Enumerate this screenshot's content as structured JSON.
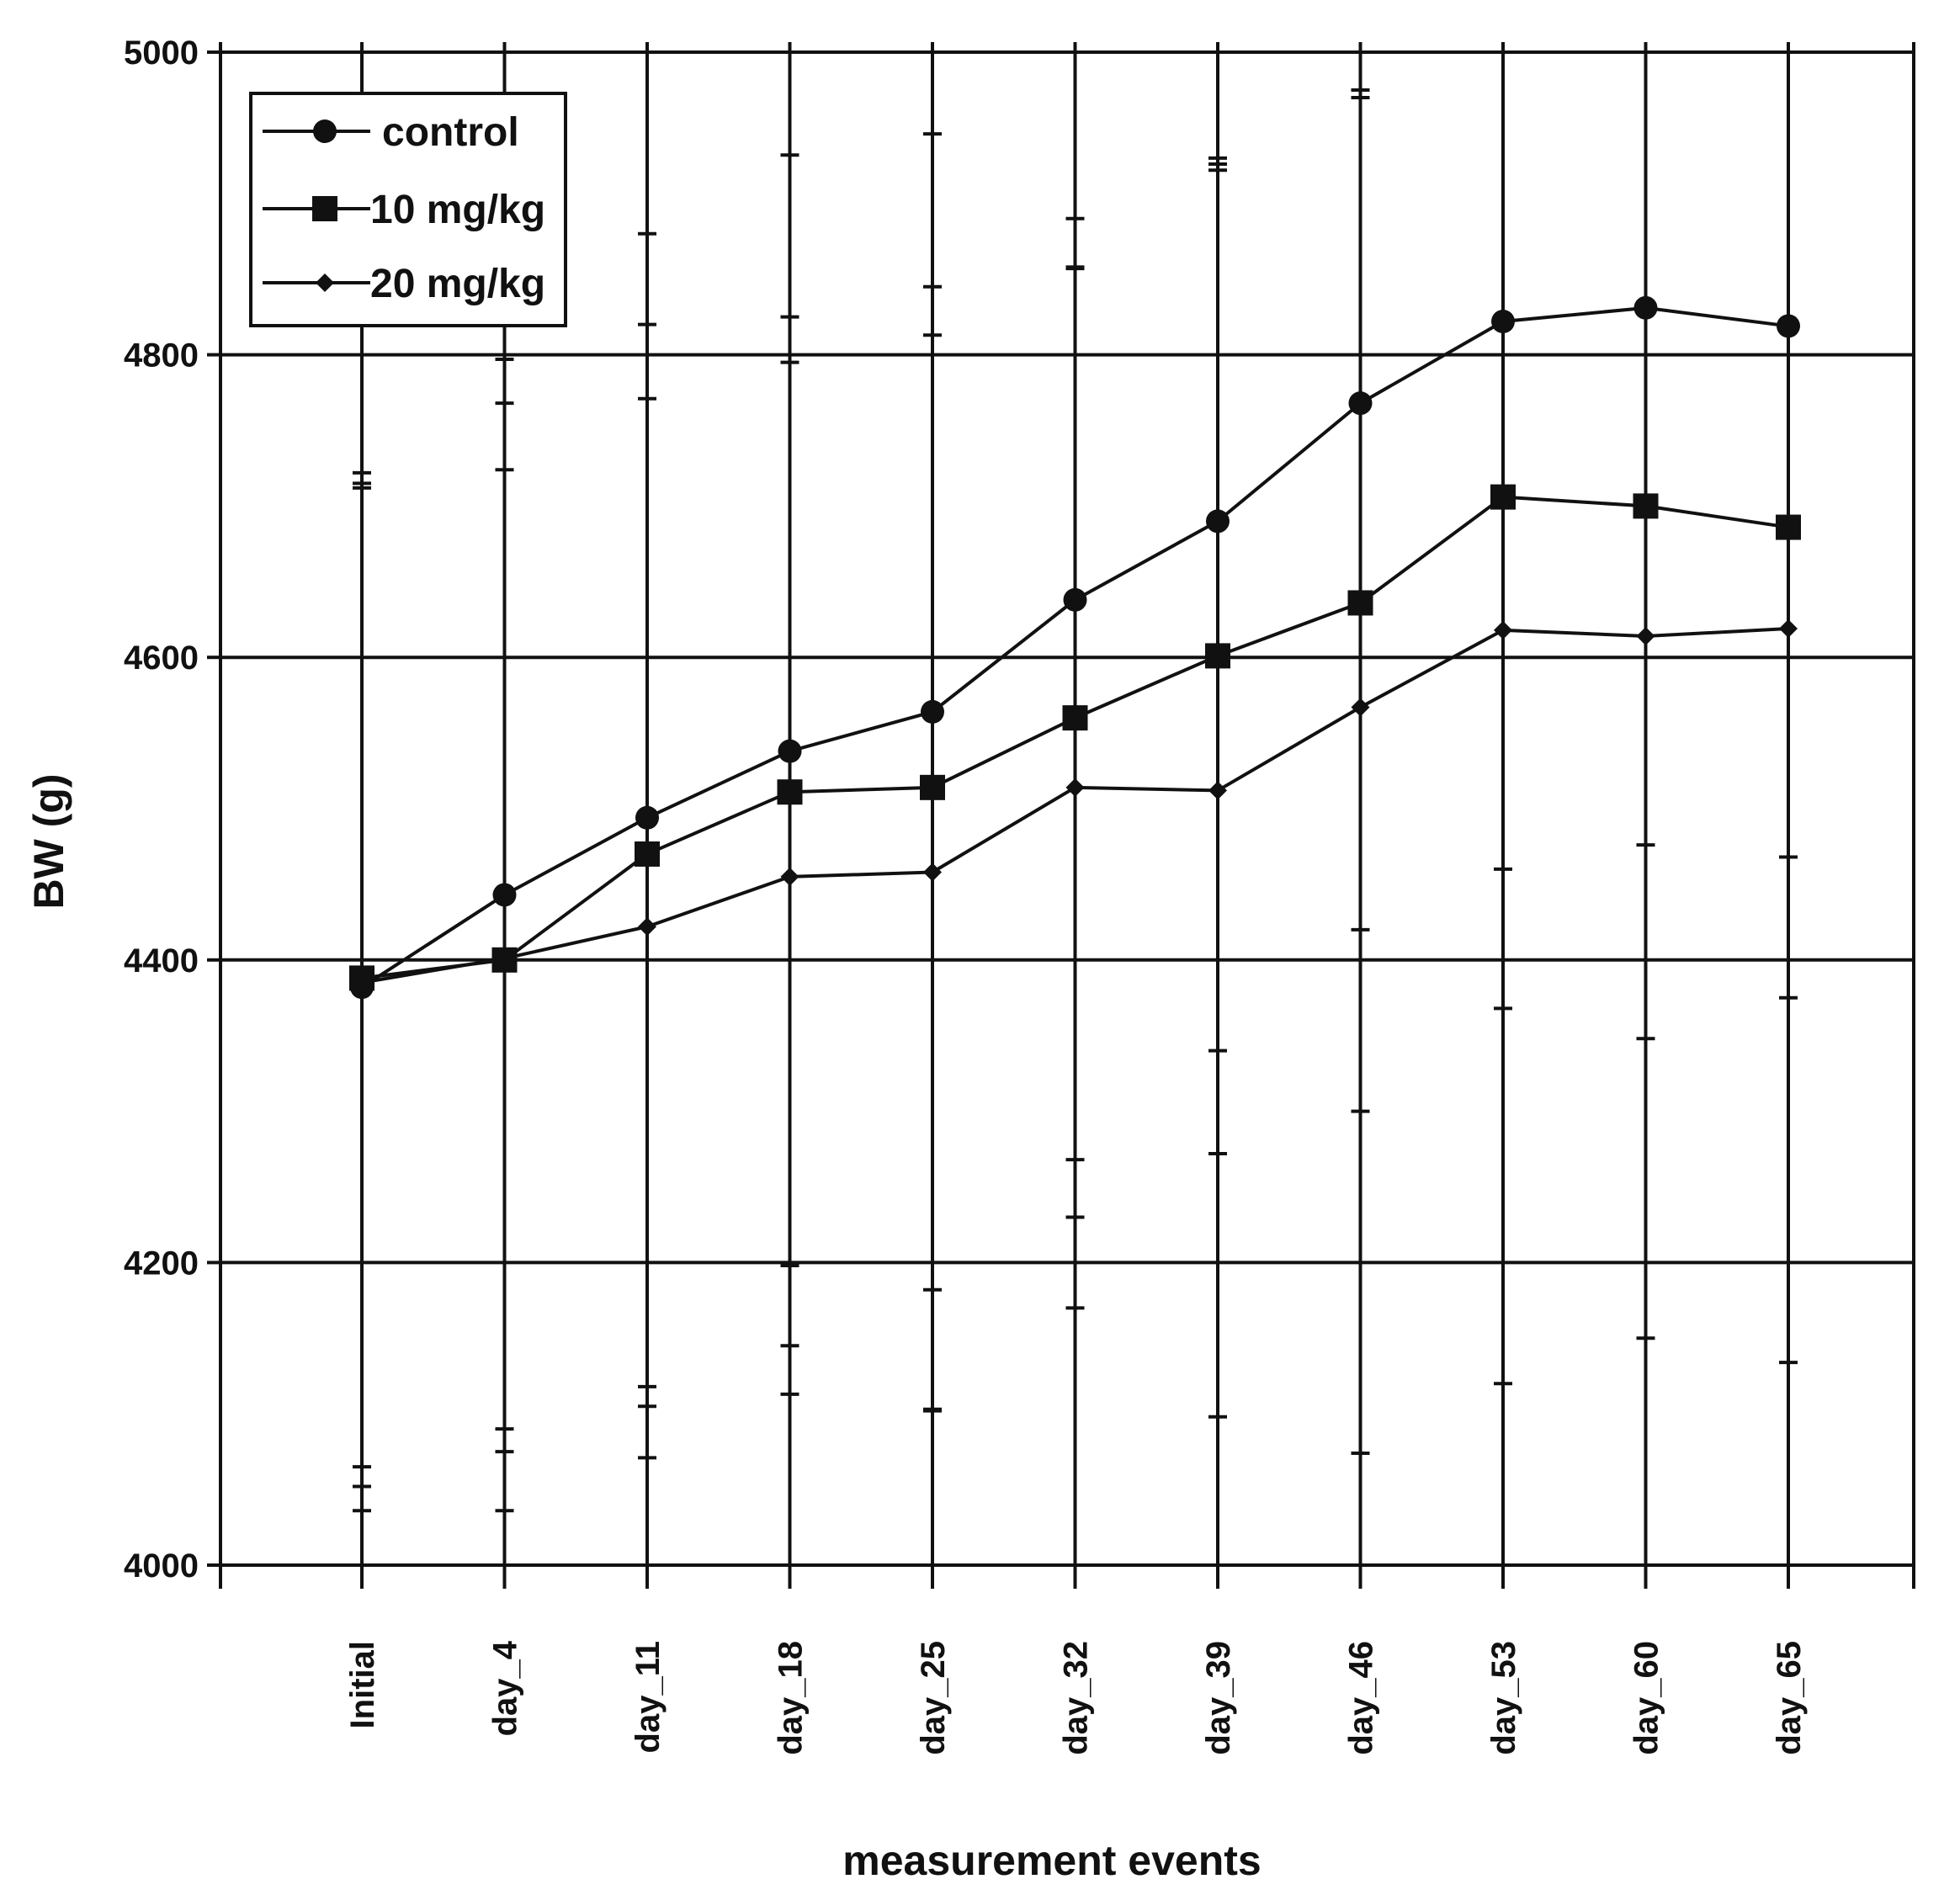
{
  "chart_data": {
    "type": "line",
    "title": "",
    "xlabel": "measurement events",
    "ylabel": "BW (g)",
    "ylim": [
      4000,
      5000
    ],
    "yticks": [
      4000,
      4200,
      4400,
      4600,
      4800,
      5000
    ],
    "grid": true,
    "legend_position": "top-left",
    "categories": [
      "Initial",
      "day_4",
      "day_11",
      "day_18",
      "day_25",
      "day_32",
      "day_39",
      "day_46",
      "day_53",
      "day_60",
      "day_65"
    ],
    "series": [
      {
        "name": "control",
        "marker": "circle",
        "values": [
          4382,
          4443,
          4494,
          4538,
          4564,
          4638,
          4690,
          4768,
          4822,
          4831,
          4819
        ],
        "error_low": [
          4065,
          4090,
          4118,
          4198,
          4182,
          4268,
          4272,
          4300,
          4368,
          4348,
          4375
        ],
        "error_high": [
          4722,
          4797,
          4820,
          4825,
          4845,
          4890,
          4930,
          4970,
          5000,
          5000,
          5000
        ]
      },
      {
        "name": "10 mg/kg",
        "marker": "square",
        "values": [
          4388,
          4400,
          4470,
          4511,
          4514,
          4560,
          4601,
          4636,
          4706,
          4700,
          4686
        ],
        "error_low": [
          4052,
          4075,
          4105,
          4145,
          4102,
          4230,
          4340,
          4420,
          4460,
          4476,
          4468
        ],
        "error_high": [
          4715,
          4768,
          4880,
          4932,
          4946,
          4857,
          4922,
          4975,
          5000,
          5000,
          5000
        ]
      },
      {
        "name": "20 mg/kg",
        "marker": "diamond",
        "values": [
          4385,
          4401,
          4422,
          4455,
          4458,
          4514,
          4512,
          4567,
          4618,
          4614,
          4619
        ],
        "error_low": [
          4036,
          4036,
          4071,
          4113,
          4103,
          4170,
          4098,
          4074,
          4120,
          4150,
          4134
        ],
        "error_high": [
          4712,
          4724,
          4771,
          4795,
          4813,
          4858,
          4926,
          5000,
          5000,
          5000,
          5000
        ]
      }
    ],
    "colors": {
      "line": "#111111",
      "grid": "#111111",
      "background": "#ffffff"
    }
  }
}
